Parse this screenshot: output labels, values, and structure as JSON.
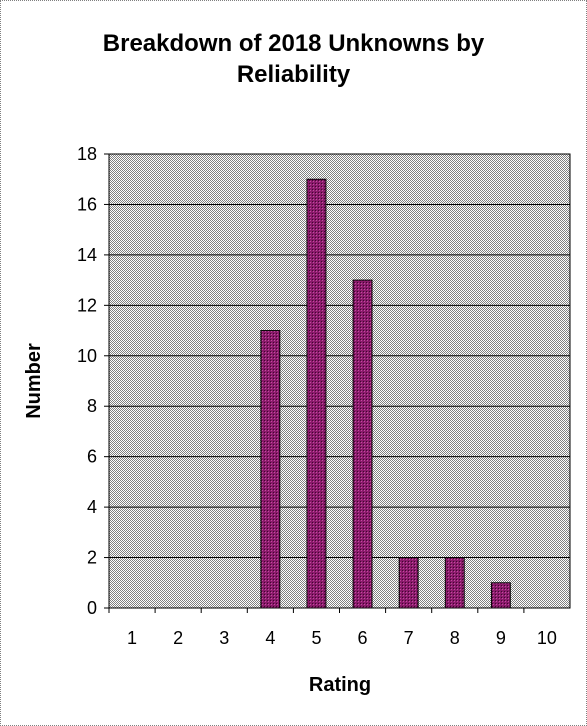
{
  "chart_data": {
    "type": "bar",
    "title": "Breakdown of 2018 Unknowns by\nReliability",
    "xlabel": "Rating",
    "ylabel": "Number",
    "categories": [
      "1",
      "2",
      "3",
      "4",
      "5",
      "6",
      "7",
      "8",
      "9",
      "10"
    ],
    "values": [
      0,
      0,
      0,
      11,
      17,
      13,
      2,
      2,
      1,
      0
    ],
    "ylim": [
      0,
      18
    ],
    "yticks": [
      "0",
      "2",
      "4",
      "6",
      "8",
      "10",
      "12",
      "14",
      "16",
      "18"
    ],
    "grid": true,
    "legend": "none",
    "colors": {
      "bar": "#8b1a6b",
      "plot_background": "#c0c0c0"
    }
  }
}
